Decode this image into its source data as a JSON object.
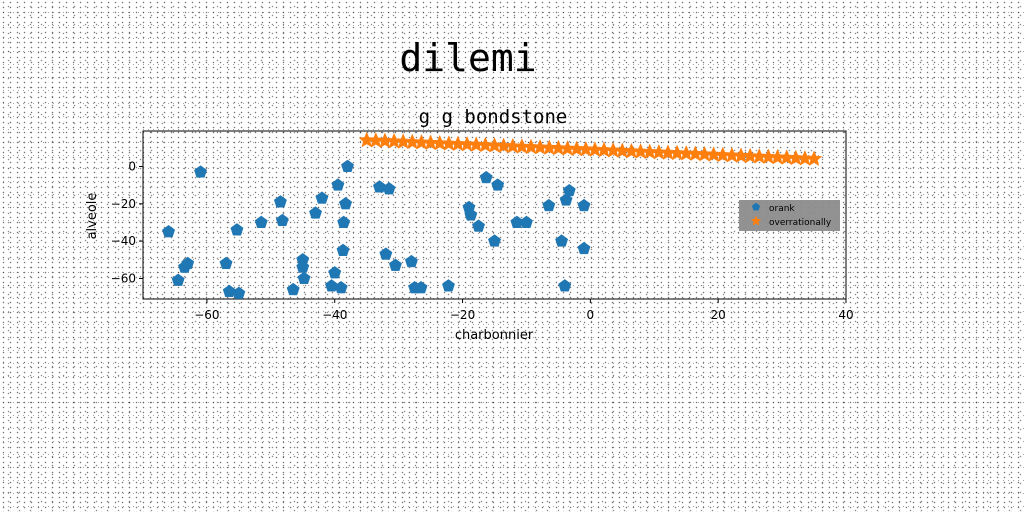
{
  "figure": {
    "suptitle": "dilemi"
  },
  "colors": {
    "series0": "#1f77b4",
    "series1": "#ff7f0e",
    "legend_bg": "#8c8c8c"
  },
  "chart_data": {
    "type": "scatter",
    "title": "g g bondstone",
    "xlabel": "charbonnier",
    "ylabel": "alveole",
    "xlim": [
      -70,
      40
    ],
    "ylim": [
      -71,
      19
    ],
    "xticks": [
      -60,
      -40,
      -20,
      0,
      20,
      40
    ],
    "yticks": [
      -60,
      -40,
      -20,
      0
    ],
    "grid": false,
    "legend_position": "center-right",
    "series": [
      {
        "name": "orank",
        "marker": "pentagon",
        "color": "#1f77b4",
        "points": [
          [
            -66,
            -35
          ],
          [
            -64.5,
            -61
          ],
          [
            -63.5,
            -54
          ],
          [
            -63,
            -52
          ],
          [
            -61,
            -3
          ],
          [
            -57,
            -52
          ],
          [
            -56.5,
            -67
          ],
          [
            -55.3,
            -34
          ],
          [
            -55,
            -68
          ],
          [
            -51.5,
            -30
          ],
          [
            -48.5,
            -19
          ],
          [
            -48.2,
            -29
          ],
          [
            -46.5,
            -66
          ],
          [
            -45,
            -50
          ],
          [
            -45,
            -54
          ],
          [
            -44.8,
            -60
          ],
          [
            -43,
            -25
          ],
          [
            -42,
            -17
          ],
          [
            -40.5,
            -64
          ],
          [
            -40,
            -57
          ],
          [
            -39.5,
            -10
          ],
          [
            -39,
            -65
          ],
          [
            -38.7,
            -45
          ],
          [
            -38.6,
            -30
          ],
          [
            -38.3,
            -20
          ],
          [
            -38,
            0
          ],
          [
            -33,
            -11
          ],
          [
            -32,
            -47
          ],
          [
            -31.5,
            -12
          ],
          [
            -30.5,
            -53
          ],
          [
            -28,
            -51
          ],
          [
            -27.5,
            -65
          ],
          [
            -26.5,
            -65
          ],
          [
            -22.2,
            -64
          ],
          [
            -19,
            -22
          ],
          [
            -18.7,
            -26
          ],
          [
            -17.5,
            -32
          ],
          [
            -16.3,
            -6
          ],
          [
            -15,
            -40
          ],
          [
            -14.5,
            -10
          ],
          [
            -11.5,
            -30
          ],
          [
            -10,
            -30
          ],
          [
            -6.5,
            -21
          ],
          [
            -4.5,
            -40
          ],
          [
            -4,
            -64
          ],
          [
            -3.8,
            -18
          ],
          [
            -3.3,
            -13
          ],
          [
            -1,
            -44
          ],
          [
            -1,
            -21
          ]
        ]
      },
      {
        "name": "overrationally",
        "marker": "star",
        "color": "#ff7f0e",
        "x_range": [
          -35,
          35
        ],
        "y_range": [
          14,
          4
        ],
        "count": 50
      }
    ]
  }
}
